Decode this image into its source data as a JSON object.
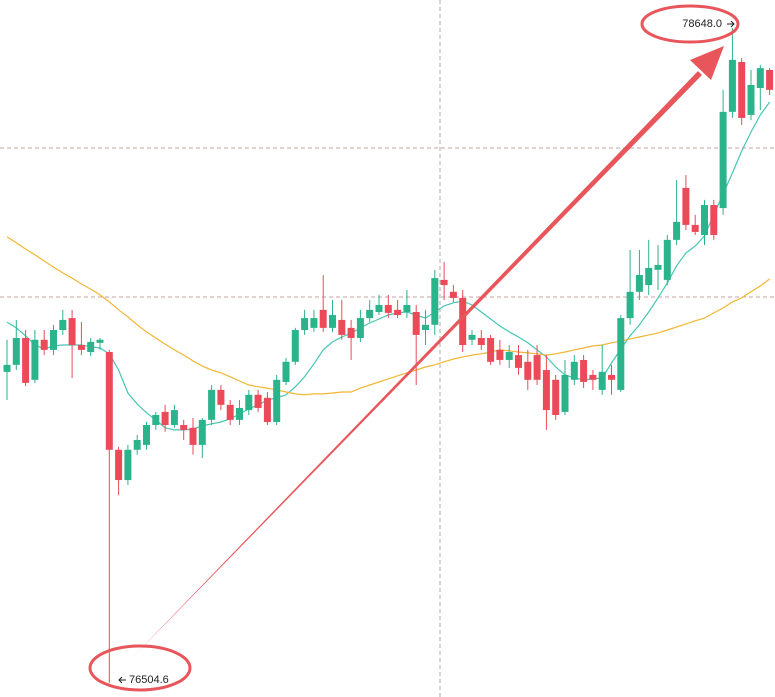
{
  "chart_data": {
    "type": "candlestick",
    "ylim": [
      76459,
      78740
    ],
    "up_color": "#2bb38b",
    "down_color": "#ec4a58",
    "open": [
      77523,
      77546,
      77634,
      77497,
      77628,
      77595,
      77660,
      77699,
      77611,
      77588,
      77618,
      77588,
      77268,
      77169,
      77268,
      77284,
      77349,
      77392,
      77349,
      77349,
      77340,
      77284,
      77366,
      77464,
      77415,
      77366,
      77398,
      77448,
      77438,
      77359,
      77490,
      77556,
      77660,
      77667,
      77726,
      77667,
      77693,
      77667,
      77634,
      77699,
      77719,
      77742,
      77726,
      77719,
      77719,
      77660,
      77677,
      77824,
      77785,
      77765,
      77628,
      77634,
      77634,
      77595,
      77562,
      77578,
      77556,
      77578,
      77529,
      77497,
      77392,
      77497,
      77562,
      77513,
      77464,
      77513,
      77464,
      77699,
      77785,
      77807,
      77857,
      77824,
      77955,
      78125,
      78004,
      77971,
      78069,
      78059,
      78374,
      78537,
      78364,
      78452,
      78511
    ],
    "high": [
      77628,
      77693,
      77660,
      77660,
      77660,
      77677,
      77726,
      77726,
      77686,
      77634,
      77634,
      77595,
      77277,
      77284,
      77317,
      77359,
      77392,
      77415,
      77415,
      77366,
      77372,
      77372,
      77480,
      77480,
      77431,
      77431,
      77464,
      77464,
      77457,
      77513,
      77569,
      77667,
      77726,
      77726,
      77840,
      77758,
      77758,
      77693,
      77726,
      77758,
      77775,
      77775,
      77758,
      77791,
      77742,
      77726,
      77857,
      77883,
      77807,
      77791,
      77660,
      77660,
      77644,
      77628,
      77611,
      77611,
      77595,
      77611,
      77578,
      77513,
      77562,
      77578,
      77578,
      77529,
      77611,
      77546,
      77709,
      77922,
      77922,
      77955,
      77938,
      77971,
      78151,
      78167,
      78037,
      78086,
      78086,
      78446,
      78648,
      78550,
      78511,
      78527,
      78517
    ],
    "low": [
      77431,
      77529,
      77477,
      77487,
      77578,
      77578,
      77644,
      77503,
      77578,
      77575,
      77595,
      76504.6,
      77120,
      77153,
      77252,
      77268,
      77333,
      77327,
      77340,
      77300,
      77252,
      77241,
      77349,
      77398,
      77349,
      77349,
      77382,
      77392,
      77349,
      77349,
      77480,
      77546,
      77644,
      77654,
      77654,
      77654,
      77628,
      77562,
      77621,
      77686,
      77709,
      77699,
      77699,
      77699,
      77480,
      77611,
      77644,
      77758,
      77752,
      77588,
      77611,
      77595,
      77546,
      77546,
      77536,
      77513,
      77464,
      77480,
      77333,
      77366,
      77382,
      77480,
      77470,
      77464,
      77448,
      77448,
      77457,
      77677,
      77758,
      77775,
      77791,
      77807,
      77938,
      77987,
      77971,
      77938,
      77955,
      78037,
      78354,
      78331,
      78347,
      78380,
      78429
    ],
    "close": [
      77546,
      77634,
      77487,
      77628,
      77595,
      77660,
      77693,
      77611,
      77595,
      77621,
      77628,
      77268,
      77169,
      77268,
      77300,
      77349,
      77382,
      77349,
      77398,
      77333,
      77284,
      77366,
      77464,
      77415,
      77366,
      77405,
      77448,
      77405,
      77359,
      77497,
      77556,
      77660,
      77699,
      77699,
      77667,
      77709,
      77644,
      77634,
      77699,
      77726,
      77742,
      77716,
      77709,
      77742,
      77644,
      77677,
      77830,
      77807,
      77765,
      77611,
      77644,
      77611,
      77556,
      77562,
      77588,
      77536,
      77497,
      77497,
      77398,
      77382,
      77513,
      77556,
      77490,
      77497,
      77523,
      77497,
      77699,
      77785,
      77840,
      77863,
      77873,
      77955,
      78014,
      78004,
      77981,
      78069,
      77971,
      78374,
      78544,
      78354,
      78462,
      78517,
      78446
    ],
    "overlays": [
      {
        "color": "#45c6b4",
        "values": [
          77686,
          77667,
          77641,
          77611,
          77598,
          77608,
          77611,
          77611,
          77611,
          77605,
          77601,
          77582,
          77529,
          77454,
          77418,
          77389,
          77366,
          77340,
          77333,
          77333,
          77336,
          77346,
          77353,
          77359,
          77369,
          77385,
          77402,
          77415,
          77431,
          77438,
          77448,
          77474,
          77507,
          77549,
          77595,
          77621,
          77637,
          77650,
          77667,
          77683,
          77696,
          77709,
          77716,
          77719,
          77709,
          77699,
          77719,
          77739,
          77749,
          77755,
          77742,
          77719,
          77696,
          77673,
          77654,
          77637,
          77618,
          77595,
          77572,
          77539,
          77513,
          77503,
          77497,
          77500,
          77503,
          77552,
          77598,
          77641,
          77677,
          77719,
          77765,
          77814,
          77870,
          77912,
          77935,
          77968,
          78037,
          78105,
          78174,
          78246,
          78308,
          78364,
          78406
        ]
      },
      {
        "color": "#f2b632",
        "values": [
          77965,
          77945,
          77925,
          77906,
          77886,
          77866,
          77847,
          77830,
          77811,
          77794,
          77775,
          77752,
          77726,
          77703,
          77677,
          77654,
          77634,
          77614,
          77595,
          77578,
          77559,
          77542,
          77529,
          77520,
          77507,
          77493,
          77480,
          77474,
          77470,
          77464,
          77457,
          77451,
          77448,
          77451,
          77451,
          77454,
          77457,
          77457,
          77470,
          77480,
          77490,
          77500,
          77510,
          77520,
          77529,
          77539,
          77546,
          77556,
          77565,
          77572,
          77578,
          77582,
          77588,
          77595,
          77592,
          77588,
          77585,
          77582,
          77578,
          77582,
          77588,
          77595,
          77601,
          77608,
          77611,
          77618,
          77624,
          77631,
          77637,
          77644,
          77650,
          77660,
          77670,
          77680,
          77690,
          77699,
          77716,
          77732,
          77752,
          77765,
          77785,
          77804,
          77827
        ]
      }
    ],
    "annotations": [
      {
        "value": 78648,
        "label": "78648.0"
      },
      {
        "value": 76504.6,
        "label": "76504.6"
      }
    ]
  }
}
